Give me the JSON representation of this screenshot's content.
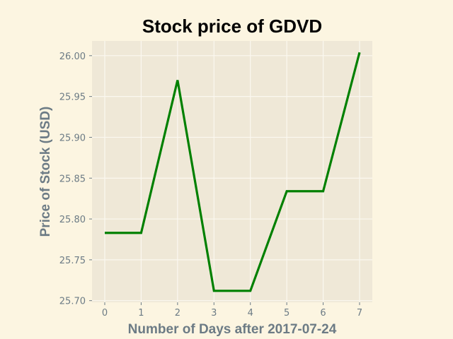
{
  "chart_data": {
    "type": "line",
    "title": "Stock price of GDVD",
    "xlabel": "Number of Days after 2017-07-24",
    "ylabel": "Price of Stock (USD)",
    "x": [
      0,
      1,
      2,
      3,
      4,
      5,
      6,
      7
    ],
    "series": [
      {
        "values": [
          25.783,
          25.783,
          25.97,
          25.712,
          25.712,
          25.834,
          25.834,
          26.004
        ],
        "color": "#008000"
      }
    ],
    "xticks": [
      "0",
      "1",
      "2",
      "3",
      "4",
      "5",
      "6",
      "7"
    ],
    "yticks": [
      "25.70",
      "25.75",
      "25.80",
      "25.85",
      "25.90",
      "25.95",
      "26.00"
    ],
    "xlim": [
      -0.35,
      7.35
    ],
    "ylim": [
      25.698,
      26.018
    ],
    "grid": true,
    "colors": {
      "figure_background": "#fcf5e1",
      "plot_background": "#efe8d7",
      "grid": "#fbf8f0",
      "tick_text": "#6c7b85",
      "axis_label_text": "#6c7b85",
      "title_text": "#000000"
    }
  }
}
